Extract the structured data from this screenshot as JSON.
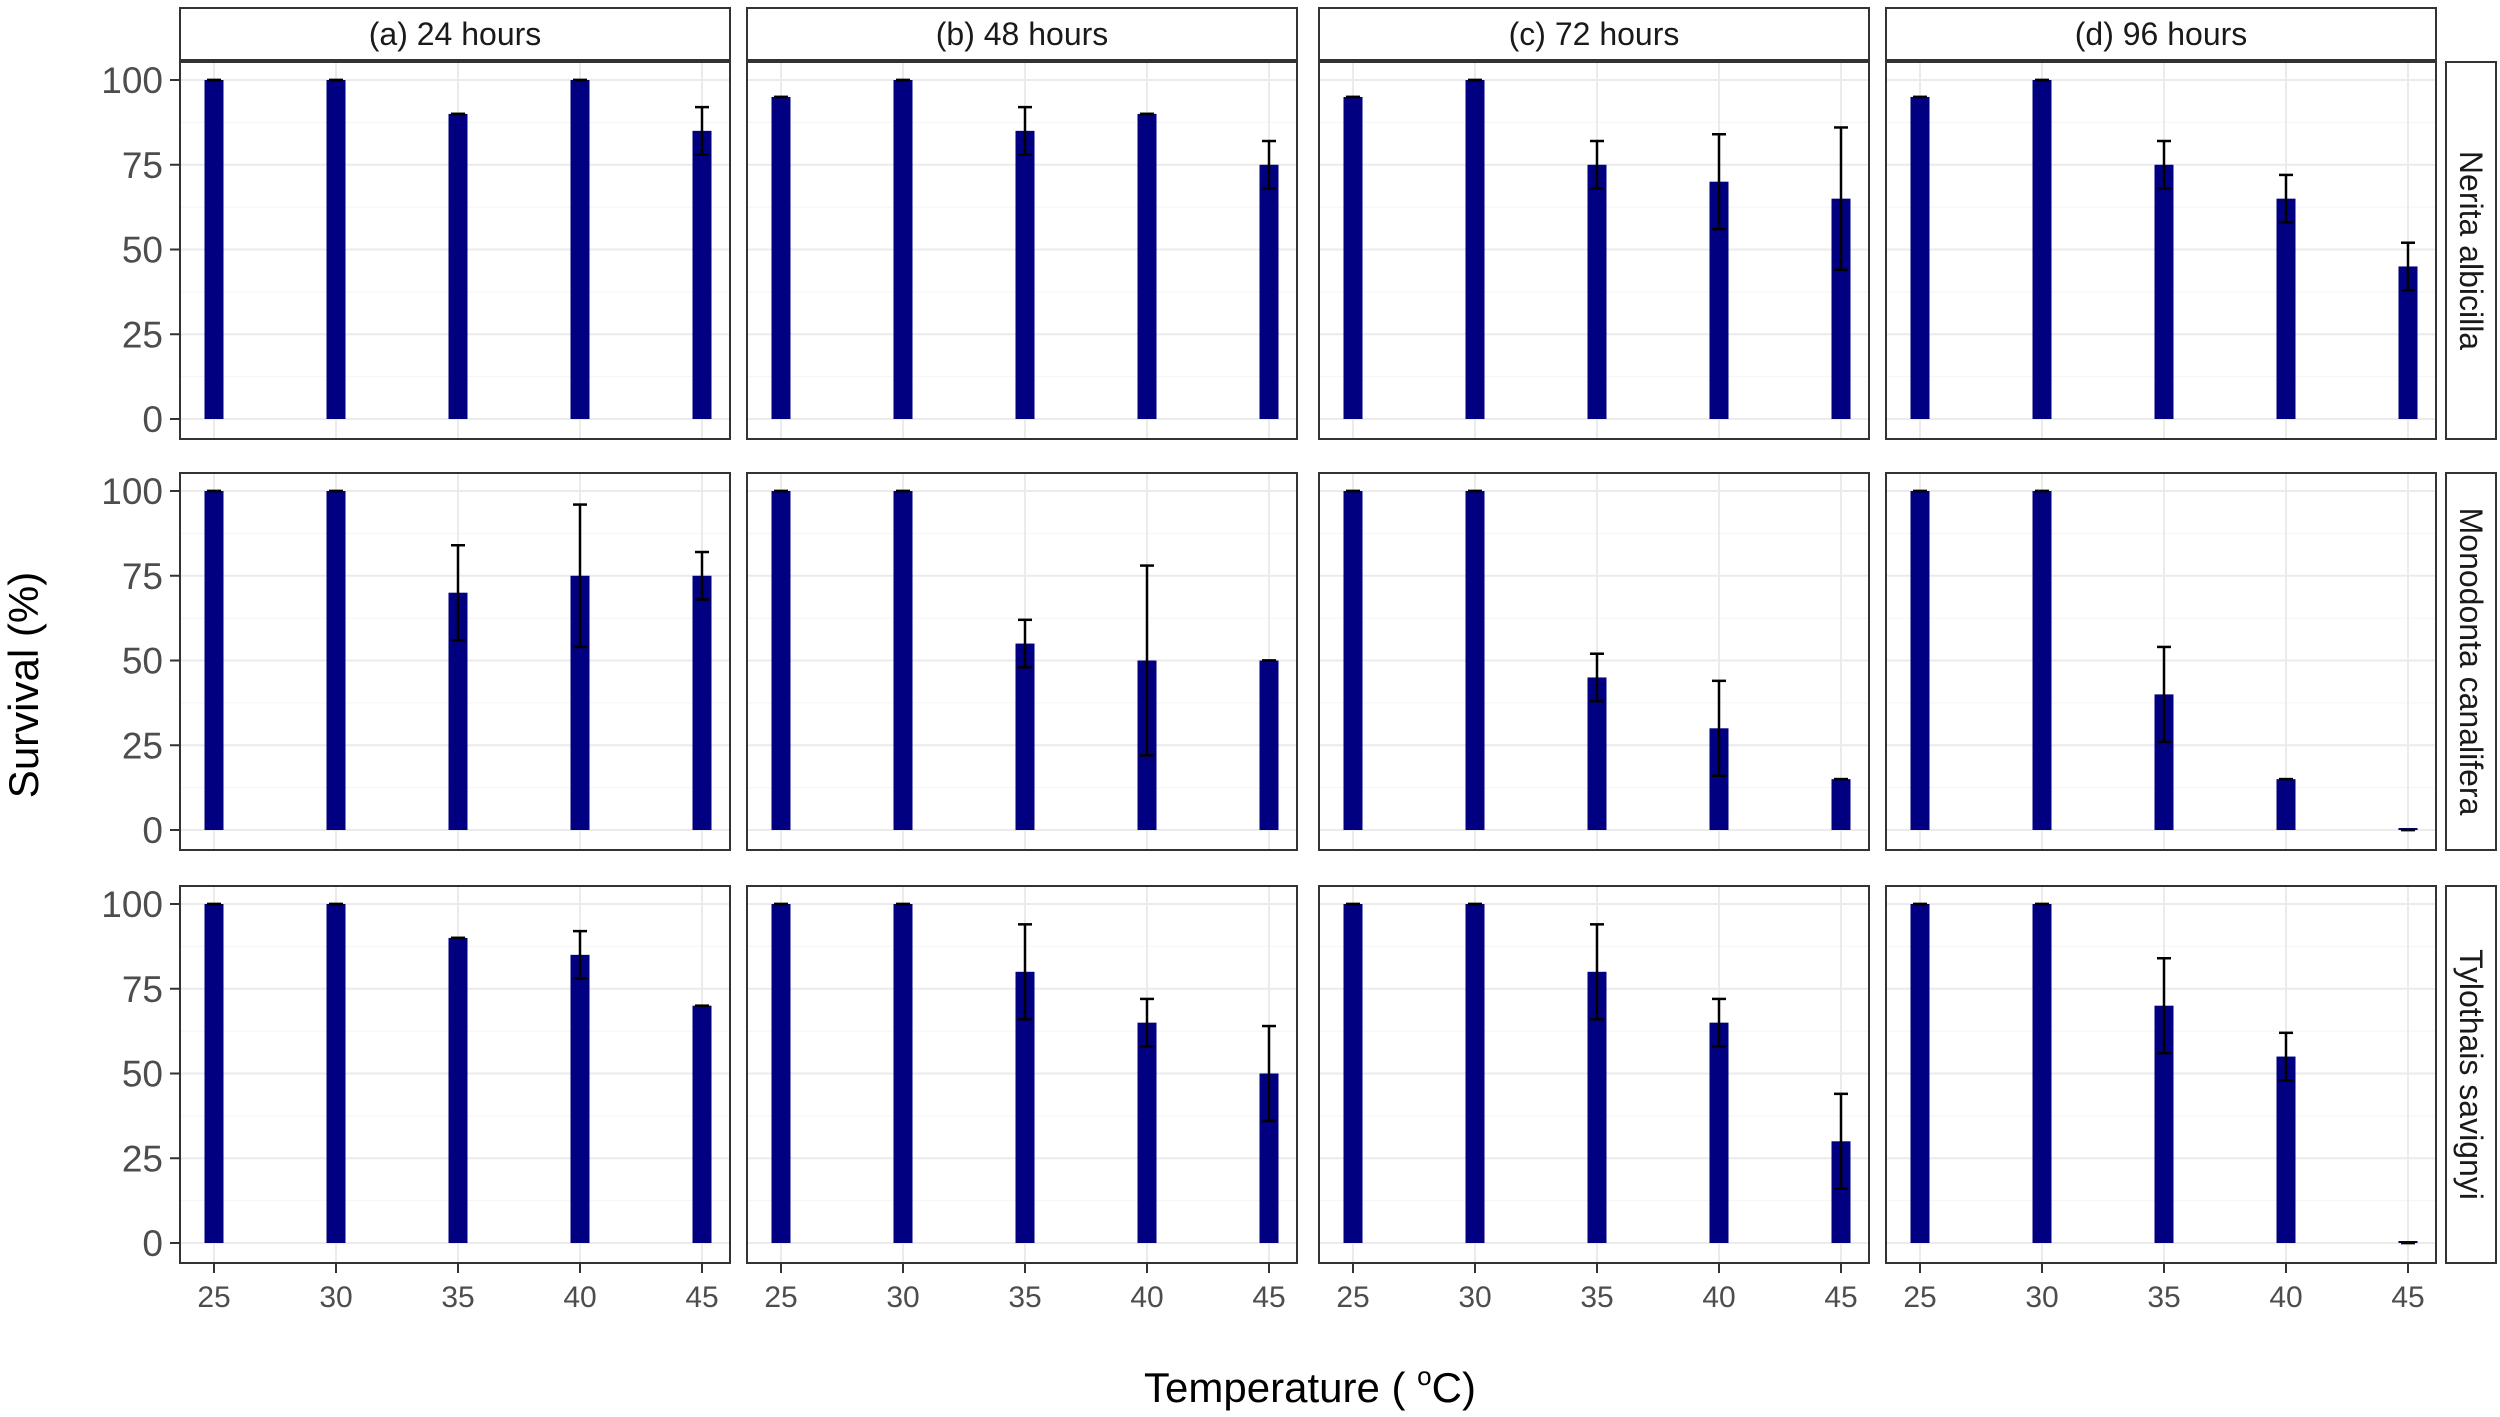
{
  "colors": {
    "bar": "#000080",
    "error_bar": "#000000",
    "strip_fill": "#ffffff",
    "panel_border": "#333333",
    "grid": "#ebebeb"
  },
  "chart_data": {
    "type": "bar",
    "layout": "facet-grid",
    "xlabel": "Temperature ( ",
    "xlabel_sup": "o",
    "xlabel_suffix": "C)",
    "ylabel": "Survival (%)",
    "ylim": [
      0,
      100
    ],
    "yticks": [
      0,
      25,
      50,
      75,
      100
    ],
    "categories": [
      "25",
      "30",
      "35",
      "40",
      "45"
    ],
    "grid": true,
    "columns": [
      "(a) 24 hours",
      "(b) 48 hours",
      "(c) 72 hours",
      "(d) 96 hours"
    ],
    "rows": [
      "Nerita albicilla",
      "Monodonta canalifera",
      "Tylothais savignyi"
    ],
    "values": [
      [
        [
          100,
          100,
          90,
          100,
          85
        ],
        [
          95,
          100,
          85,
          90,
          75
        ],
        [
          95,
          100,
          75,
          70,
          65
        ],
        [
          95,
          100,
          75,
          65,
          45
        ]
      ],
      [
        [
          100,
          100,
          70,
          75,
          75
        ],
        [
          100,
          100,
          55,
          50,
          50
        ],
        [
          100,
          100,
          45,
          30,
          15
        ],
        [
          100,
          100,
          40,
          15,
          0
        ]
      ],
      [
        [
          100,
          100,
          90,
          85,
          70
        ],
        [
          100,
          100,
          80,
          65,
          50
        ],
        [
          100,
          100,
          80,
          65,
          30
        ],
        [
          100,
          100,
          70,
          55,
          0
        ]
      ]
    ],
    "errors": [
      [
        [
          0,
          0,
          0,
          0,
          7
        ],
        [
          0,
          0,
          7,
          0,
          7
        ],
        [
          0,
          0,
          7,
          14,
          21
        ],
        [
          0,
          0,
          7,
          7,
          7
        ]
      ],
      [
        [
          0,
          0,
          14,
          21,
          7
        ],
        [
          0,
          0,
          7,
          28,
          0
        ],
        [
          0,
          0,
          7,
          14,
          0
        ],
        [
          0,
          0,
          14,
          0,
          0
        ]
      ],
      [
        [
          0,
          0,
          0,
          7,
          0
        ],
        [
          0,
          0,
          14,
          7,
          14
        ],
        [
          0,
          0,
          14,
          7,
          14
        ],
        [
          0,
          0,
          14,
          7,
          0
        ]
      ]
    ]
  }
}
